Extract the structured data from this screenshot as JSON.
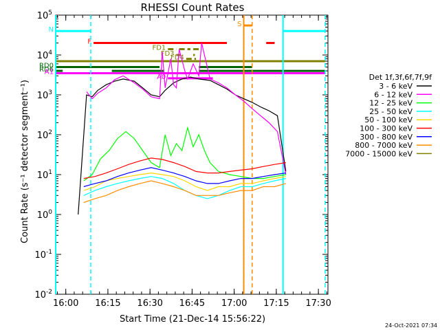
{
  "chart_data": {
    "type": "line",
    "title": "RHESSI Count Rates",
    "xlabel": "Start Time (21-Dec-14 15:56:22)",
    "ylabel": "Count Rate (s⁻¹ detector segment⁻¹)",
    "x_unit": "minutes after 15:56:22",
    "xlim": [
      0,
      97
    ],
    "ylim": [
      0.01,
      100000
    ],
    "y_scale": "log",
    "x_ticks": [
      {
        "label": "16:00",
        "value": 3.6
      },
      {
        "label": "16:15",
        "value": 18.6
      },
      {
        "label": "16:30",
        "value": 33.6
      },
      {
        "label": "16:45",
        "value": 48.6
      },
      {
        "label": "17:00",
        "value": 63.6
      },
      {
        "label": "17:15",
        "value": 78.6
      },
      {
        "label": "17:30",
        "value": 93.6
      }
    ],
    "y_ticks": [
      {
        "base": "10",
        "exp": "-2",
        "value": 0.01
      },
      {
        "base": "10",
        "exp": "-1",
        "value": 0.1
      },
      {
        "base": "10",
        "exp": "0",
        "value": 1
      },
      {
        "base": "10",
        "exp": "1",
        "value": 10
      },
      {
        "base": "10",
        "exp": "2",
        "value": 100
      },
      {
        "base": "10",
        "exp": "3",
        "value": 1000
      },
      {
        "base": "10",
        "exp": "4",
        "value": 10000
      },
      {
        "base": "10",
        "exp": "5",
        "value": 100000
      }
    ],
    "legend_title": "Det 1f,3f,6f,7f,9f",
    "legend_position": "right",
    "series": [
      {
        "name": "3 - 6 keV",
        "color": "#000000",
        "x": [
          8,
          11,
          13,
          15,
          18,
          21,
          24,
          28,
          31,
          34,
          37,
          39,
          42,
          45,
          48,
          51,
          55,
          58,
          61,
          64,
          67,
          70,
          73,
          76,
          79,
          82
        ],
        "y": [
          1,
          1000,
          900,
          1300,
          1800,
          2200,
          2500,
          2200,
          1500,
          1000,
          900,
          1300,
          2000,
          2500,
          2800,
          2500,
          2300,
          1800,
          1400,
          1000,
          800,
          650,
          500,
          400,
          300,
          12
        ]
      },
      {
        "name": "6 - 12 keV",
        "color": "#ff00ff",
        "x": [
          11,
          13,
          15,
          18,
          21,
          24,
          28,
          31,
          34,
          37,
          38,
          39,
          41,
          42,
          43,
          44,
          46,
          47,
          49,
          51,
          52,
          55,
          58,
          61,
          64,
          67,
          70,
          73,
          76,
          79,
          82
        ],
        "y": [
          1200,
          800,
          1100,
          1500,
          2400,
          3000,
          2000,
          1400,
          900,
          800,
          12000,
          1500,
          8000,
          1800,
          1500,
          14000,
          4000,
          2500,
          6000,
          3000,
          20000,
          2500,
          2000,
          1500,
          1000,
          700,
          450,
          300,
          200,
          120,
          10
        ]
      },
      {
        "name": "12 - 25 keV",
        "color": "#00ff00",
        "x": [
          10,
          13,
          16,
          19,
          22,
          25,
          28,
          31,
          34,
          37,
          39,
          41,
          43,
          45,
          47,
          49,
          51,
          53,
          55,
          58,
          62,
          66,
          70,
          74,
          78,
          82
        ],
        "y": [
          7,
          10,
          25,
          40,
          80,
          120,
          80,
          40,
          20,
          15,
          100,
          30,
          60,
          40,
          150,
          50,
          100,
          40,
          20,
          12,
          10,
          9,
          8,
          8,
          9,
          10
        ]
      },
      {
        "name": "25 - 50 keV",
        "color": "#00ffff",
        "x": [
          10,
          14,
          18,
          22,
          26,
          30,
          34,
          38,
          42,
          46,
          50,
          54,
          58,
          62,
          66,
          70,
          74,
          78,
          82
        ],
        "y": [
          3,
          4,
          5,
          6,
          7,
          8,
          9,
          8,
          6,
          4,
          3,
          2.5,
          3,
          4,
          5,
          5,
          6,
          7,
          8
        ]
      },
      {
        "name": "50 - 100 keV",
        "color": "#ffd700",
        "x": [
          10,
          14,
          18,
          22,
          26,
          30,
          34,
          38,
          42,
          46,
          50,
          54,
          58,
          62,
          66,
          70,
          74,
          78,
          82
        ],
        "y": [
          4,
          5,
          7,
          8,
          9,
          10,
          11,
          10,
          9,
          7,
          5,
          4,
          5,
          5,
          6,
          6,
          7,
          8,
          9
        ]
      },
      {
        "name": "100 - 300 keV",
        "color": "#ff0000",
        "x": [
          10,
          14,
          18,
          22,
          26,
          30,
          34,
          38,
          42,
          46,
          50,
          54,
          58,
          62,
          66,
          70,
          74,
          78,
          82
        ],
        "y": [
          8,
          9,
          11,
          14,
          18,
          22,
          26,
          24,
          20,
          16,
          12,
          11,
          11,
          12,
          13,
          14,
          16,
          18,
          20
        ]
      },
      {
        "name": "300 - 800 keV",
        "color": "#0000ff",
        "x": [
          10,
          14,
          18,
          22,
          26,
          30,
          34,
          38,
          42,
          46,
          50,
          54,
          58,
          62,
          66,
          70,
          74,
          78,
          82
        ],
        "y": [
          5,
          6,
          7,
          9,
          11,
          13,
          15,
          13,
          11,
          9,
          7,
          6,
          6,
          7,
          8,
          8,
          9,
          10,
          11
        ]
      },
      {
        "name": "800 - 7000 keV",
        "color": "#ff8c00",
        "x": [
          10,
          14,
          18,
          22,
          26,
          30,
          34,
          38,
          42,
          46,
          50,
          54,
          58,
          62,
          66,
          70,
          74,
          78,
          82
        ],
        "y": [
          2,
          2.5,
          3,
          4,
          5,
          6,
          7,
          6,
          5,
          4,
          3,
          3,
          3,
          3.5,
          4,
          4,
          5,
          5,
          6
        ]
      },
      {
        "name": "7000 - 15000 keV",
        "color": "#808000",
        "x": [],
        "y": []
      }
    ],
    "flags": [
      {
        "label": "N",
        "color": "#00ffff",
        "segments": [
          [
            0,
            12.5
          ],
          [
            81,
            96
          ]
        ],
        "y": 40000
      },
      {
        "label": "F",
        "color": "#ff0000",
        "segments": [
          [
            13.5,
            61
          ],
          [
            75,
            78
          ]
        ],
        "y": 20000
      },
      {
        "label": "S",
        "color": "#ff8c00",
        "segments": [
          [
            67,
            70
          ]
        ],
        "y": 55000
      },
      {
        "label": "FD1",
        "color": "#808000",
        "segments": [
          [
            40,
            43
          ],
          [
            44,
            48
          ],
          [
            49,
            51
          ]
        ],
        "y": 14000,
        "dashed": true
      },
      {
        "label": "FD3",
        "color": "#808000",
        "segments": [
          [
            43,
            44.5
          ],
          [
            49,
            49.6
          ]
        ],
        "y": 10000,
        "dashed": true
      },
      {
        "label": "FD4",
        "color": "#808000",
        "segments": [
          [
            46.5,
            50
          ]
        ],
        "y": 8000,
        "dashed": true
      },
      {
        "label": "",
        "color": "#808000",
        "segments": [
          [
            0,
            96
          ]
        ],
        "y": 7000
      },
      {
        "label": "RD0",
        "color": "#006400",
        "segments": [
          [
            0,
            37
          ],
          [
            51,
            70
          ]
        ],
        "y": 5000
      },
      {
        "label": "RD6",
        "color": "#006400",
        "segments": [
          [
            0,
            2.5
          ],
          [
            20,
            38.5
          ],
          [
            51,
            96
          ]
        ],
        "y": 4000
      },
      {
        "label": "A1",
        "color": "#ff00ff",
        "segments": [
          [
            0,
            96
          ]
        ],
        "y": 3500
      },
      {
        "label": "A0",
        "color": "#ff00ff",
        "segments": [
          [
            40,
            56
          ]
        ],
        "y": 2600
      }
    ],
    "vertical_lines": [
      {
        "x": 0,
        "color": "#00ffff",
        "style": "solid"
      },
      {
        "x": 12.5,
        "color": "#00ffff",
        "style": "dashed"
      },
      {
        "x": 67,
        "color": "#ff8c00",
        "style": "solid"
      },
      {
        "x": 70,
        "color": "#ff8c00",
        "style": "dashed"
      },
      {
        "x": 81,
        "color": "#00ffff",
        "style": "solid"
      },
      {
        "x": 96,
        "color": "#00ffff",
        "style": "dashed"
      }
    ]
  },
  "footer": {
    "timestamp": "24-Oct-2021 07:34"
  }
}
